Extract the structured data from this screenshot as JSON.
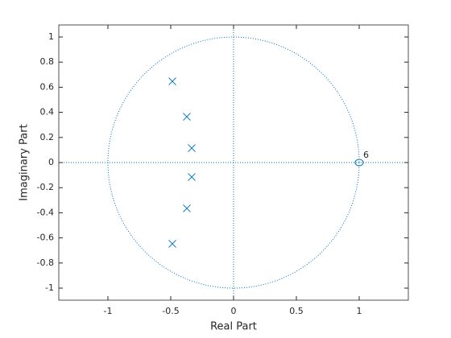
{
  "chart_data": {
    "type": "zplane",
    "xlabel": "Real Part",
    "ylabel": "Imaginary Part",
    "xlim": [
      -1.391,
      1.391
    ],
    "ylim": [
      -1.096,
      1.096
    ],
    "xticks": [
      -1,
      -0.5,
      0,
      0.5,
      1
    ],
    "yticks": [
      -1,
      -0.8,
      -0.6,
      -0.4,
      -0.2,
      0,
      0.2,
      0.4,
      0.6,
      0.8,
      1
    ],
    "color": "#0072bd",
    "poles": {
      "x": [
        -0.487,
        -0.372,
        -0.333,
        -0.333,
        -0.372,
        -0.487
      ],
      "y": [
        0.647,
        0.365,
        0.115,
        -0.115,
        -0.365,
        -0.647
      ]
    },
    "zeros": {
      "x": [
        1
      ],
      "y": [
        0
      ],
      "labels": [
        "6"
      ]
    }
  }
}
